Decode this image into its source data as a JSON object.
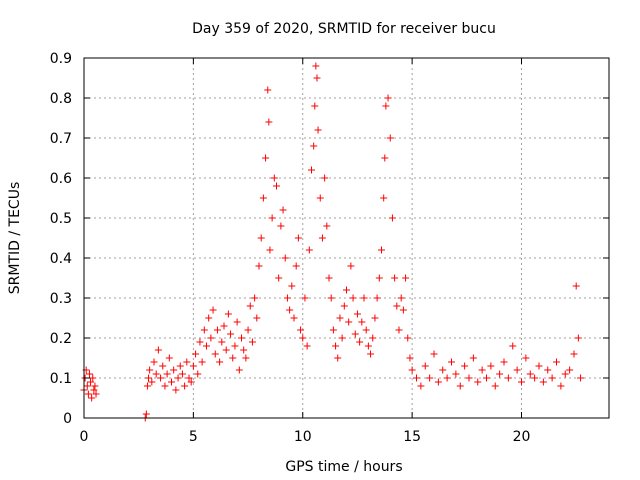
{
  "chart_data": {
    "type": "scatter",
    "title": "Day 359 of 2020, SRMTID for receiver bucu",
    "xlabel": "GPS time / hours",
    "ylabel": "SRMTID / TECUs",
    "xlim": [
      0,
      24
    ],
    "ylim": [
      0,
      0.9
    ],
    "xticks": [
      0,
      5,
      10,
      15,
      20
    ],
    "xtick_labels": [
      "0",
      "5",
      "10",
      "15",
      "20"
    ],
    "yticks": [
      0,
      0.1,
      0.2,
      0.3,
      0.4,
      0.5,
      0.6,
      0.7,
      0.8,
      0.9
    ],
    "ytick_labels": [
      "0",
      "0.1",
      "0.2",
      "0.3",
      "0.4",
      "0.5",
      "0.6",
      "0.7",
      "0.8",
      "0.9"
    ],
    "grid": true,
    "marker": "plus",
    "color": "#ff0000",
    "series": [
      {
        "name": "SRMTID",
        "x": [
          0.0,
          0.05,
          0.1,
          0.15,
          0.2,
          0.25,
          0.3,
          0.35,
          0.4,
          0.45,
          0.5,
          0.55,
          2.8,
          2.85,
          2.9,
          2.95,
          3.0,
          3.1,
          3.2,
          3.3,
          3.4,
          3.5,
          3.6,
          3.7,
          3.8,
          3.9,
          4.0,
          4.1,
          4.2,
          4.3,
          4.4,
          4.5,
          4.6,
          4.7,
          4.8,
          4.9,
          5.0,
          5.1,
          5.2,
          5.3,
          5.4,
          5.5,
          5.6,
          5.7,
          5.8,
          5.9,
          6.0,
          6.1,
          6.2,
          6.3,
          6.4,
          6.5,
          6.6,
          6.7,
          6.8,
          6.9,
          7.0,
          7.1,
          7.2,
          7.3,
          7.4,
          7.5,
          7.6,
          7.7,
          7.8,
          7.9,
          8.0,
          8.1,
          8.2,
          8.3,
          8.4,
          8.45,
          8.5,
          8.6,
          8.7,
          8.8,
          8.9,
          9.0,
          9.1,
          9.2,
          9.3,
          9.4,
          9.5,
          9.6,
          9.7,
          9.8,
          9.9,
          10.0,
          10.1,
          10.2,
          10.3,
          10.4,
          10.5,
          10.55,
          10.6,
          10.65,
          10.7,
          10.8,
          10.9,
          11.0,
          11.1,
          11.2,
          11.3,
          11.4,
          11.5,
          11.6,
          11.7,
          11.8,
          11.9,
          12.0,
          12.1,
          12.2,
          12.3,
          12.4,
          12.5,
          12.6,
          12.7,
          12.8,
          12.9,
          13.0,
          13.1,
          13.2,
          13.3,
          13.4,
          13.5,
          13.6,
          13.7,
          13.75,
          13.8,
          13.9,
          14.0,
          14.1,
          14.2,
          14.3,
          14.4,
          14.5,
          14.6,
          14.7,
          14.8,
          14.9,
          15.0,
          15.2,
          15.4,
          15.6,
          15.8,
          16.0,
          16.2,
          16.4,
          16.6,
          16.8,
          17.0,
          17.2,
          17.4,
          17.6,
          17.8,
          18.0,
          18.2,
          18.4,
          18.6,
          18.8,
          19.0,
          19.2,
          19.4,
          19.6,
          19.8,
          20.0,
          20.2,
          20.4,
          20.6,
          20.8,
          21.0,
          21.2,
          21.4,
          21.6,
          21.8,
          22.0,
          22.2,
          22.4,
          22.5,
          22.6,
          22.7
        ],
        "y": [
          0.07,
          0.1,
          0.12,
          0.08,
          0.06,
          0.11,
          0.09,
          0.05,
          0.1,
          0.07,
          0.08,
          0.06,
          0.0,
          0.01,
          0.08,
          0.1,
          0.12,
          0.09,
          0.14,
          0.11,
          0.17,
          0.1,
          0.13,
          0.08,
          0.11,
          0.15,
          0.09,
          0.12,
          0.07,
          0.1,
          0.13,
          0.11,
          0.08,
          0.14,
          0.1,
          0.09,
          0.13,
          0.16,
          0.11,
          0.19,
          0.14,
          0.22,
          0.18,
          0.25,
          0.2,
          0.27,
          0.16,
          0.22,
          0.14,
          0.19,
          0.23,
          0.17,
          0.26,
          0.21,
          0.15,
          0.18,
          0.24,
          0.12,
          0.2,
          0.17,
          0.15,
          0.22,
          0.28,
          0.19,
          0.3,
          0.25,
          0.38,
          0.45,
          0.55,
          0.65,
          0.82,
          0.74,
          0.42,
          0.5,
          0.6,
          0.58,
          0.35,
          0.48,
          0.52,
          0.4,
          0.3,
          0.27,
          0.33,
          0.25,
          0.38,
          0.45,
          0.22,
          0.2,
          0.3,
          0.18,
          0.42,
          0.62,
          0.68,
          0.78,
          0.88,
          0.85,
          0.72,
          0.55,
          0.45,
          0.6,
          0.48,
          0.35,
          0.3,
          0.22,
          0.18,
          0.15,
          0.25,
          0.2,
          0.28,
          0.32,
          0.24,
          0.38,
          0.3,
          0.21,
          0.26,
          0.19,
          0.24,
          0.3,
          0.22,
          0.18,
          0.16,
          0.2,
          0.25,
          0.3,
          0.35,
          0.42,
          0.55,
          0.65,
          0.78,
          0.8,
          0.7,
          0.5,
          0.35,
          0.28,
          0.22,
          0.3,
          0.27,
          0.35,
          0.2,
          0.15,
          0.12,
          0.1,
          0.08,
          0.13,
          0.1,
          0.16,
          0.09,
          0.12,
          0.1,
          0.14,
          0.11,
          0.08,
          0.13,
          0.1,
          0.15,
          0.09,
          0.12,
          0.1,
          0.13,
          0.08,
          0.11,
          0.14,
          0.1,
          0.18,
          0.12,
          0.09,
          0.15,
          0.11,
          0.1,
          0.13,
          0.09,
          0.12,
          0.1,
          0.14,
          0.08,
          0.11,
          0.12,
          0.16,
          0.33,
          0.2,
          0.1
        ]
      }
    ]
  }
}
